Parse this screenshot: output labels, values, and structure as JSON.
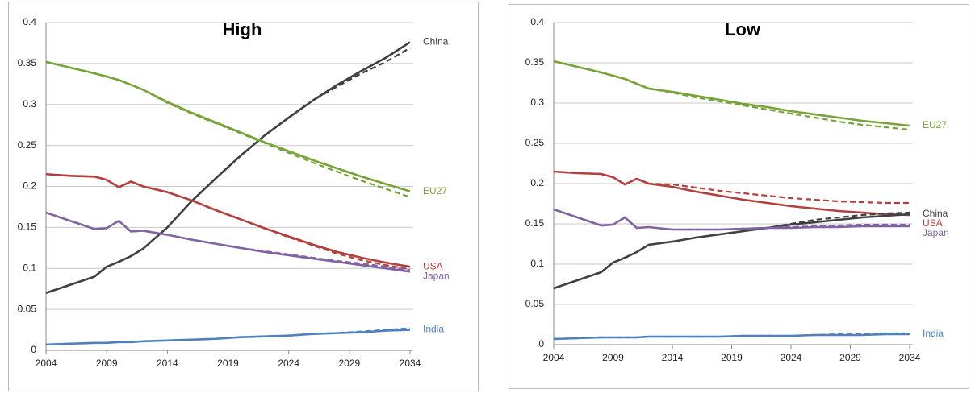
{
  "chart_data": [
    {
      "type": "line",
      "title": "High",
      "x": [
        2004,
        2006,
        2008,
        2009,
        2010,
        2011,
        2012,
        2014,
        2016,
        2018,
        2020,
        2022,
        2024,
        2026,
        2028,
        2030,
        2032,
        2034
      ],
      "series": [
        {
          "name": "China",
          "color": "#404040",
          "values": [
            0.07,
            0.08,
            0.09,
            0.102,
            0.108,
            0.115,
            0.124,
            0.15,
            0.182,
            0.21,
            0.237,
            0.262,
            0.284,
            0.305,
            0.324,
            0.341,
            0.357,
            0.376
          ],
          "dashed_values": [
            0.07,
            0.08,
            0.09,
            0.102,
            0.108,
            0.115,
            0.124,
            0.15,
            0.182,
            0.21,
            0.237,
            0.262,
            0.284,
            0.305,
            0.322,
            0.338,
            0.352,
            0.369
          ]
        },
        {
          "name": "EU27",
          "color": "#77a33a",
          "values": [
            0.352,
            0.345,
            0.338,
            0.334,
            0.33,
            0.324,
            0.318,
            0.303,
            0.29,
            0.278,
            0.266,
            0.254,
            0.243,
            0.232,
            0.222,
            0.212,
            0.203,
            0.194
          ],
          "dashed_values": [
            0.352,
            0.345,
            0.338,
            0.334,
            0.33,
            0.324,
            0.318,
            0.302,
            0.289,
            0.277,
            0.265,
            0.253,
            0.241,
            0.229,
            0.218,
            0.207,
            0.197,
            0.187
          ]
        },
        {
          "name": "USA",
          "color": "#b0413e",
          "values": [
            0.215,
            0.213,
            0.212,
            0.208,
            0.199,
            0.206,
            0.2,
            0.193,
            0.183,
            0.171,
            0.16,
            0.149,
            0.139,
            0.129,
            0.12,
            0.113,
            0.107,
            0.102
          ],
          "dashed_values": [
            0.215,
            0.213,
            0.212,
            0.208,
            0.199,
            0.206,
            0.2,
            0.193,
            0.183,
            0.171,
            0.16,
            0.149,
            0.138,
            0.128,
            0.118,
            0.11,
            0.104,
            0.099
          ]
        },
        {
          "name": "Japan",
          "color": "#8064a2",
          "values": [
            0.168,
            0.158,
            0.148,
            0.149,
            0.158,
            0.145,
            0.146,
            0.141,
            0.135,
            0.13,
            0.125,
            0.12,
            0.116,
            0.112,
            0.108,
            0.104,
            0.1,
            0.096
          ],
          "dashed_values": [
            0.168,
            0.158,
            0.148,
            0.149,
            0.158,
            0.145,
            0.146,
            0.141,
            0.135,
            0.13,
            0.125,
            0.121,
            0.117,
            0.113,
            0.109,
            0.106,
            0.102,
            0.098
          ]
        },
        {
          "name": "India",
          "color": "#4f81bd",
          "values": [
            0.007,
            0.008,
            0.009,
            0.009,
            0.01,
            0.01,
            0.011,
            0.012,
            0.013,
            0.014,
            0.016,
            0.017,
            0.018,
            0.02,
            0.021,
            0.022,
            0.024,
            0.025
          ],
          "dashed_values": [
            0.007,
            0.008,
            0.009,
            0.009,
            0.01,
            0.01,
            0.011,
            0.012,
            0.013,
            0.014,
            0.016,
            0.017,
            0.018,
            0.02,
            0.021,
            0.023,
            0.025,
            0.027
          ]
        }
      ],
      "xlim": [
        2004,
        2034
      ],
      "ylim": [
        0,
        0.4
      ],
      "xticks": [
        2004,
        2009,
        2014,
        2019,
        2024,
        2029,
        2034
      ],
      "yticks": [
        0,
        0.05,
        0.1,
        0.15,
        0.2,
        0.25,
        0.3,
        0.35,
        0.4
      ],
      "grid": true
    },
    {
      "type": "line",
      "title": "Low",
      "x": [
        2004,
        2006,
        2008,
        2009,
        2010,
        2011,
        2012,
        2014,
        2016,
        2018,
        2020,
        2022,
        2024,
        2026,
        2028,
        2030,
        2032,
        2034
      ],
      "series": [
        {
          "name": "EU27",
          "color": "#77a33a",
          "values": [
            0.352,
            0.345,
            0.338,
            0.334,
            0.33,
            0.324,
            0.318,
            0.314,
            0.309,
            0.304,
            0.299,
            0.295,
            0.29,
            0.286,
            0.282,
            0.278,
            0.275,
            0.272
          ],
          "dashed_values": [
            0.352,
            0.345,
            0.338,
            0.334,
            0.33,
            0.324,
            0.318,
            0.313,
            0.307,
            0.302,
            0.297,
            0.292,
            0.287,
            0.282,
            0.277,
            0.273,
            0.27,
            0.267
          ]
        },
        {
          "name": "USA",
          "color": "#b0413e",
          "values": [
            0.215,
            0.213,
            0.212,
            0.208,
            0.199,
            0.206,
            0.2,
            0.196,
            0.19,
            0.185,
            0.18,
            0.176,
            0.172,
            0.169,
            0.166,
            0.164,
            0.162,
            0.161
          ],
          "dashed_values": [
            0.215,
            0.213,
            0.212,
            0.208,
            0.199,
            0.206,
            0.2,
            0.199,
            0.195,
            0.191,
            0.188,
            0.185,
            0.182,
            0.18,
            0.178,
            0.177,
            0.176,
            0.176
          ]
        },
        {
          "name": "China",
          "color": "#404040",
          "values": [
            0.07,
            0.08,
            0.09,
            0.102,
            0.108,
            0.115,
            0.124,
            0.128,
            0.133,
            0.137,
            0.141,
            0.145,
            0.149,
            0.152,
            0.155,
            0.158,
            0.16,
            0.162
          ],
          "dashed_values": [
            0.07,
            0.08,
            0.09,
            0.102,
            0.108,
            0.115,
            0.124,
            0.128,
            0.133,
            0.137,
            0.141,
            0.145,
            0.15,
            0.155,
            0.158,
            0.161,
            0.163,
            0.164
          ]
        },
        {
          "name": "Japan",
          "color": "#8064a2",
          "values": [
            0.168,
            0.158,
            0.148,
            0.149,
            0.158,
            0.145,
            0.146,
            0.143,
            0.143,
            0.143,
            0.144,
            0.145,
            0.145,
            0.146,
            0.146,
            0.147,
            0.147,
            0.147
          ],
          "dashed_values": [
            0.168,
            0.158,
            0.148,
            0.149,
            0.158,
            0.145,
            0.146,
            0.143,
            0.143,
            0.143,
            0.144,
            0.145,
            0.146,
            0.147,
            0.148,
            0.149,
            0.149,
            0.149
          ]
        },
        {
          "name": "India",
          "color": "#4f81bd",
          "values": [
            0.007,
            0.008,
            0.009,
            0.009,
            0.009,
            0.009,
            0.01,
            0.01,
            0.01,
            0.01,
            0.011,
            0.011,
            0.011,
            0.012,
            0.012,
            0.012,
            0.013,
            0.013
          ],
          "dashed_values": [
            0.007,
            0.008,
            0.009,
            0.009,
            0.009,
            0.009,
            0.01,
            0.01,
            0.01,
            0.01,
            0.011,
            0.011,
            0.011,
            0.012,
            0.013,
            0.013,
            0.014,
            0.014
          ]
        }
      ],
      "xlim": [
        2004,
        2034
      ],
      "ylim": [
        0,
        0.4
      ],
      "xticks": [
        2004,
        2009,
        2014,
        2019,
        2024,
        2029,
        2034
      ],
      "yticks": [
        0,
        0.05,
        0.1,
        0.15,
        0.2,
        0.25,
        0.3,
        0.35,
        0.4
      ],
      "grid": true
    }
  ]
}
